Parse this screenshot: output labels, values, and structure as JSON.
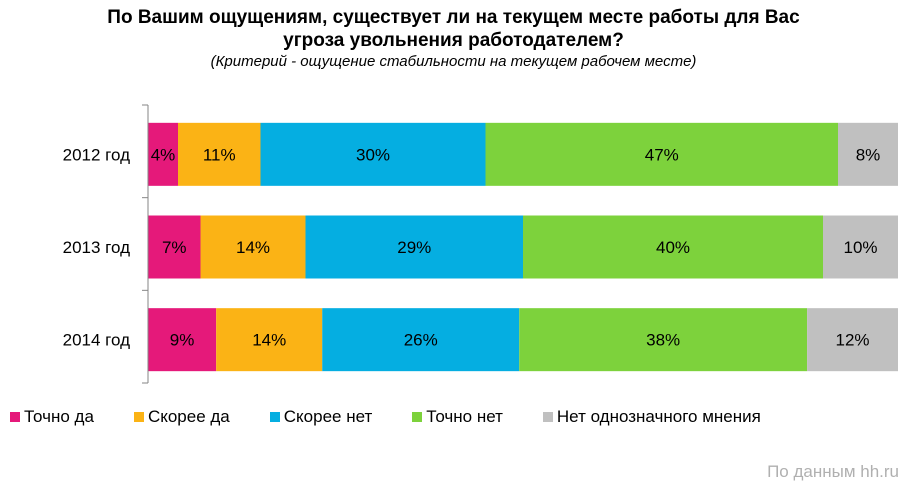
{
  "chart_data": {
    "type": "bar",
    "orientation": "horizontal",
    "stacked": true,
    "title": "По Вашим ощущениям, существует ли на текущем месте работы для Вас угроза увольнения работодателем?",
    "subtitle": "(Критерий - ощущение стабильности на текущем рабочем месте)",
    "categories": [
      "2012 год",
      "2013 год",
      "2014 год"
    ],
    "series": [
      {
        "name": "Точно да",
        "color": "#e5197a",
        "values": [
          4,
          7,
          9
        ],
        "labels": [
          "4%",
          "7%",
          "9%"
        ]
      },
      {
        "name": "Скорее да",
        "color": "#fbb315",
        "values": [
          11,
          14,
          14
        ],
        "labels": [
          "11%",
          "14%",
          "14%"
        ]
      },
      {
        "name": "Скорее нет",
        "color": "#05aee1",
        "values": [
          30,
          29,
          26
        ],
        "labels": [
          "30%",
          "29%",
          "26%"
        ]
      },
      {
        "name": "Точно нет",
        "color": "#7dd23c",
        "values": [
          47,
          40,
          38
        ],
        "labels": [
          "47%",
          "40%",
          "38%"
        ]
      },
      {
        "name": "Нет однозначного мнения",
        "color": "#c0c0c0",
        "values": [
          8,
          10,
          12
        ],
        "labels": [
          "8%",
          "10%",
          "12%"
        ]
      }
    ],
    "legend_position": "bottom",
    "grid": false
  },
  "source_note": "По данным hh.ru"
}
